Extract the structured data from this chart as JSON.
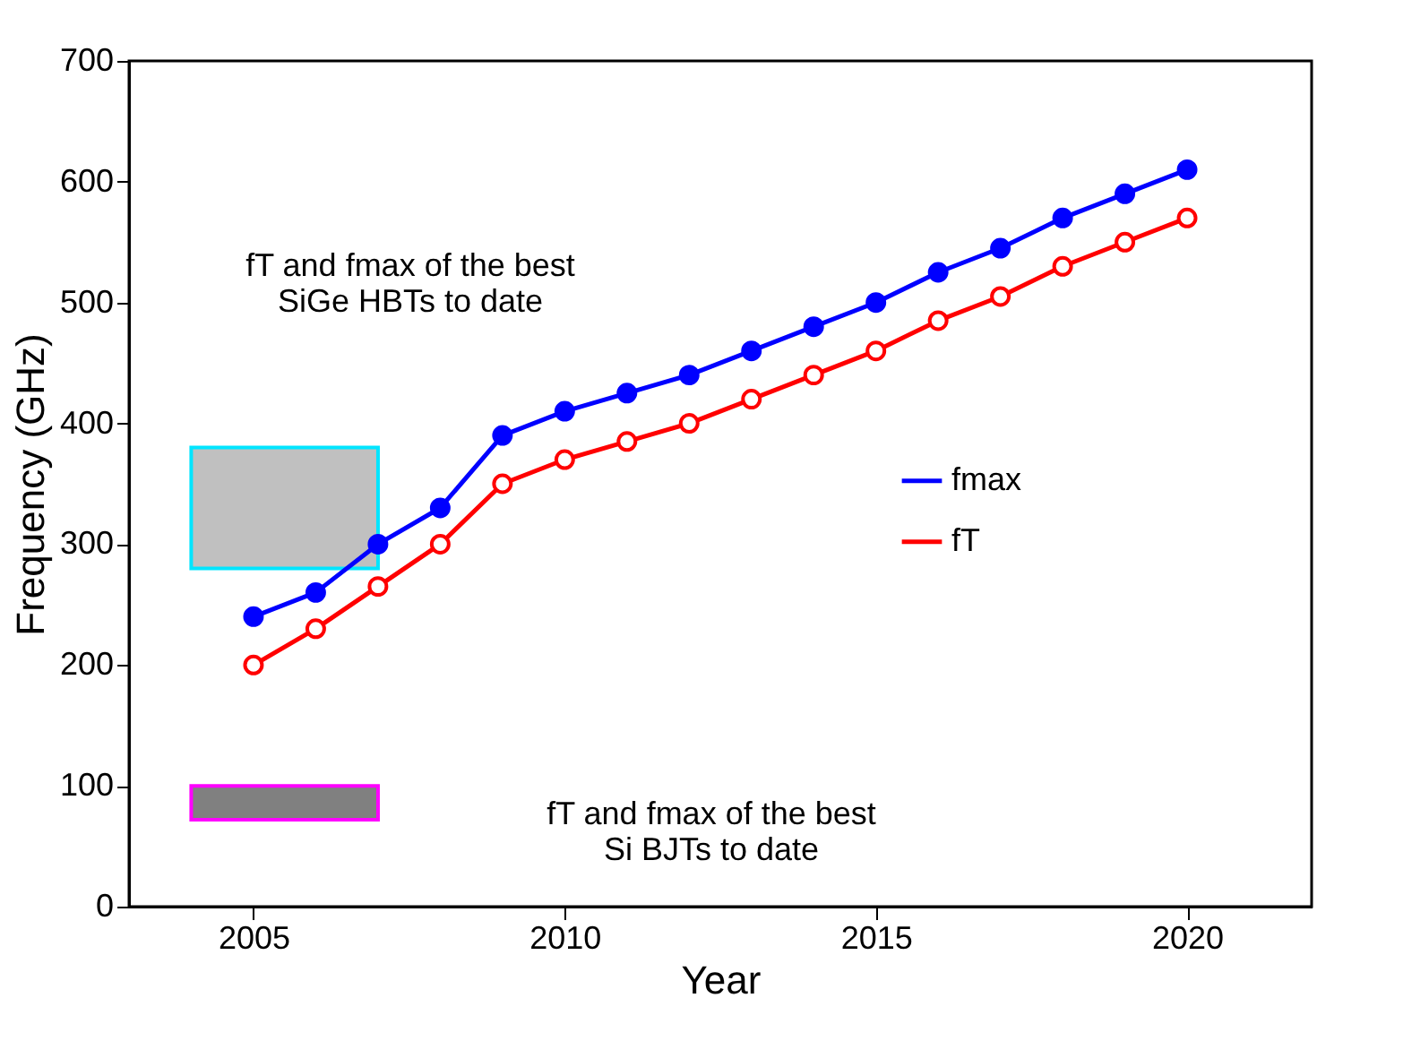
{
  "chart_data": {
    "type": "line",
    "xlabel": "Year",
    "ylabel": "Frequency (GHz)",
    "x": [
      2005,
      2006,
      2007,
      2008,
      2009,
      2010,
      2011,
      2012,
      2013,
      2014,
      2015,
      2016,
      2017,
      2018,
      2019,
      2020
    ],
    "series": [
      {
        "name": "fmax",
        "color": "#0000ff",
        "values": [
          240,
          260,
          300,
          330,
          390,
          410,
          425,
          440,
          460,
          480,
          500,
          525,
          545,
          570,
          590,
          610
        ]
      },
      {
        "name": "fT",
        "color": "#ff0000",
        "values": [
          200,
          230,
          265,
          300,
          350,
          370,
          385,
          400,
          420,
          440,
          460,
          485,
          505,
          530,
          550,
          570
        ]
      },
      {
        "type": "bar",
        "color": "#c0c0c0",
        "x": [
          2005.5
        ],
        "base": [
          280
        ],
        "values": [
          100
        ]
      },
      {
        "type": "bar",
        "color": "#808080",
        "x": [
          2005.5
        ],
        "base": [
          72
        ],
        "values": [
          28
        ]
      }
    ],
    "xlim": [
      2003,
      2022
    ],
    "xticks": [
      2005,
      2010,
      2015,
      2020
    ],
    "ylim": [
      0,
      700
    ],
    "yticks": [
      0,
      100,
      200,
      300,
      400,
      500,
      600,
      700
    ],
    "annotations": [
      "fT and fmax of the best\nSiGe HBTs to date",
      "fT and fmax of the best\nSi BJTs to date"
    ],
    "marker": "circle",
    "line_style": "solid",
    "legend": "right",
    "grid": false
  }
}
